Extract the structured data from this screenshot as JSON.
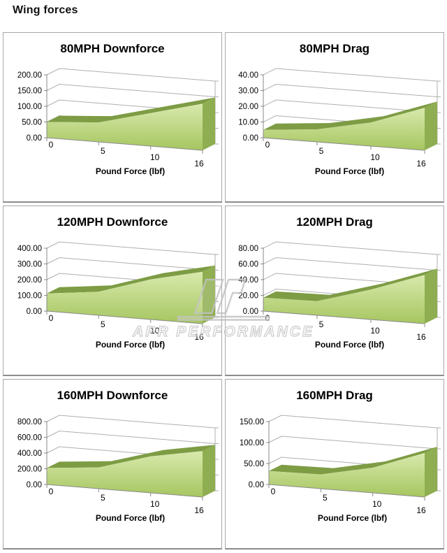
{
  "page": {
    "title": "Wing forces"
  },
  "watermark": {
    "text": "APR PERFORMANCE",
    "emblem": "apr-logo-emblem",
    "color": "#c3c3c3"
  },
  "colors": {
    "area_top_ridge": "#7d9c44",
    "area_front_light": "#d8e9ac",
    "area_front_dark": "#a6c660",
    "area_side": "#8fae51",
    "gridline": "#afafaf",
    "axis": "#8a8a8a",
    "box_border": "#a8a8a8",
    "text": "#000000"
  },
  "chart_data": [
    {
      "type": "area",
      "title": "80MPH Downforce",
      "xlabel": "Pound Force (lbf)",
      "x": [
        0,
        5,
        10,
        16
      ],
      "x_tick_labels": [
        "0",
        "5",
        "10",
        "16"
      ],
      "values": [
        50,
        62,
        105,
        148
      ],
      "ylim": [
        0,
        200
      ],
      "y_max": 200,
      "y_tick_labels": [
        "0.00",
        "50.00",
        "100.00",
        "150.00",
        "200.00"
      ],
      "grid": true,
      "legend": false
    },
    {
      "type": "area",
      "title": "80MPH Drag",
      "xlabel": "Pound Force (lbf)",
      "x": [
        0,
        5,
        10,
        16
      ],
      "x_tick_labels": [
        "0",
        "5",
        "10",
        "16"
      ],
      "values": [
        5,
        8,
        15,
        27
      ],
      "ylim": [
        0,
        40
      ],
      "y_max": 40,
      "y_tick_labels": [
        "0.00",
        "10.00",
        "20.00",
        "30.00",
        "40.00"
      ],
      "grid": true,
      "legend": false
    },
    {
      "type": "area",
      "title": "120MPH Downforce",
      "xlabel": "Pound Force (lbf)",
      "x": [
        0,
        5,
        10,
        16
      ],
      "x_tick_labels": [
        "0",
        "5",
        "10",
        "16"
      ],
      "values": [
        112,
        150,
        255,
        330
      ],
      "ylim": [
        0,
        400
      ],
      "y_max": 400,
      "y_tick_labels": [
        "0.00",
        "100.00",
        "200.00",
        "300.00",
        "400.00"
      ],
      "grid": true,
      "legend": false
    },
    {
      "type": "area",
      "title": "120MPH Drag",
      "xlabel": "Pound Force (lbf)",
      "x": [
        0,
        5,
        10,
        16
      ],
      "x_tick_labels": [
        "0",
        "5",
        "10",
        "16"
      ],
      "values": [
        17,
        18,
        38,
        62
      ],
      "ylim": [
        0,
        80
      ],
      "y_max": 80,
      "y_tick_labels": [
        "0.00",
        "20.00",
        "40.00",
        "60.00",
        "80.00"
      ],
      "grid": true,
      "legend": false
    },
    {
      "type": "area",
      "title": "160MPH Downforce",
      "xlabel": "Pound Force (lbf)",
      "x": [
        0,
        5,
        10,
        16
      ],
      "x_tick_labels": [
        "0",
        "5",
        "10",
        "16"
      ],
      "values": [
        210,
        270,
        465,
        585
      ],
      "ylim": [
        0,
        800
      ],
      "y_max": 800,
      "y_tick_labels": [
        "0.00",
        "200.00",
        "400.00",
        "600.00",
        "800.00"
      ],
      "grid": true,
      "legend": false
    },
    {
      "type": "area",
      "title": "160MPH Drag",
      "xlabel": "Pound Force (lbf)",
      "x": [
        0,
        5,
        10,
        16
      ],
      "x_tick_labels": [
        "0",
        "5",
        "10",
        "16"
      ],
      "values": [
        32,
        34,
        60,
        105
      ],
      "ylim": [
        0,
        150
      ],
      "y_max": 150,
      "y_tick_labels": [
        "0.00",
        "50.00",
        "100.00",
        "150.00"
      ],
      "grid": true,
      "legend": false
    }
  ]
}
